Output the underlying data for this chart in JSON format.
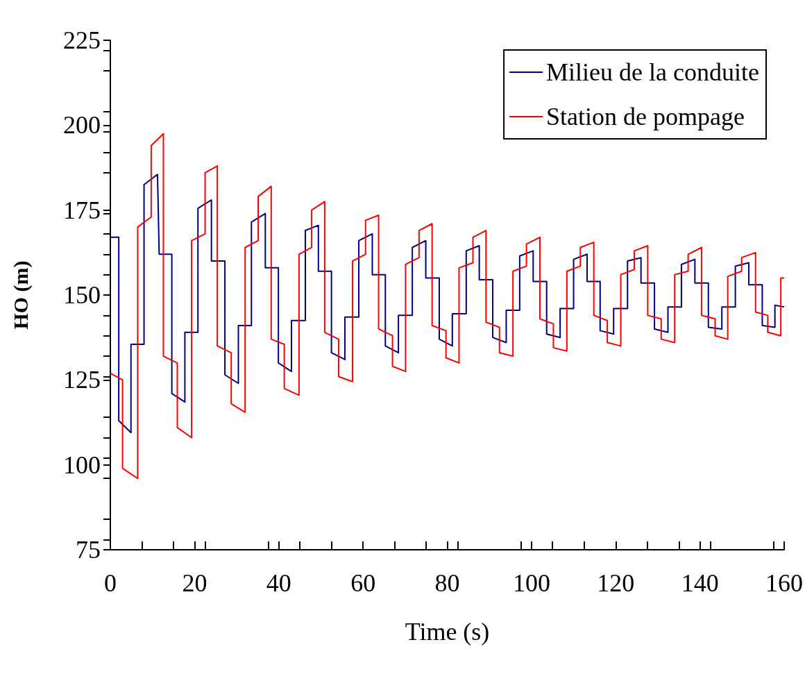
{
  "chart_data": {
    "type": "line",
    "xlabel": "Time (s)",
    "ylabel": "HO (m)",
    "xlim": [
      0,
      160
    ],
    "xticks": [
      0,
      20,
      40,
      60,
      80,
      100,
      120,
      140,
      160
    ],
    "ylim": [
      75,
      225
    ],
    "yticks": [
      75,
      100,
      125,
      150,
      175,
      200,
      225
    ],
    "grid": false,
    "legend": "top right",
    "series": [
      {
        "name": "Milieu de la conduite",
        "color": "#000080",
        "x": [
          0,
          2.0,
          2.0,
          4.9,
          4.9,
          8.0,
          8.0,
          11.2,
          11.6,
          14.6,
          14.6,
          17.7,
          17.7,
          20.8,
          20.8,
          24.0,
          24.0,
          27.2,
          27.2,
          30.4,
          30.4,
          33.5,
          33.5,
          36.8,
          36.8,
          39.9,
          39.9,
          43.0,
          43.0,
          46.3,
          46.3,
          49.4,
          49.4,
          52.5,
          52.5,
          55.7,
          55.7,
          59.0,
          59.0,
          62.2,
          62.2,
          65.3,
          65.3,
          68.4,
          68.4,
          71.7,
          71.7,
          74.9,
          74.9,
          78.1,
          78.1,
          81.2,
          81.2,
          84.5,
          84.5,
          87.6,
          87.6,
          90.8,
          90.8,
          94.0,
          94.0,
          97.2,
          97.2,
          100.4,
          100.4,
          103.6,
          103.6,
          106.8,
          106.8,
          110.0,
          110.0,
          113.2,
          113.2,
          116.3,
          116.3,
          119.5,
          119.5,
          122.8,
          122.8,
          126.0,
          126.0,
          129.2,
          129.2,
          132.4,
          132.4,
          135.6,
          135.6,
          138.8,
          138.8,
          142.0,
          142.0,
          145.2,
          145.2,
          148.4,
          148.4,
          151.6,
          151.6,
          154.8,
          154.8,
          157.8,
          157.8,
          160
        ],
        "values": [
          167,
          167,
          113,
          109.5,
          135.5,
          135.5,
          182.5,
          185.5,
          162,
          162,
          121,
          118.5,
          139,
          139,
          175.5,
          178,
          160,
          160,
          126.5,
          124,
          141,
          141,
          171.5,
          174,
          158,
          158,
          130,
          127.5,
          142.5,
          142.5,
          169,
          170.5,
          157,
          157,
          133,
          131,
          143.5,
          143.5,
          166,
          168,
          156,
          156,
          135,
          133,
          144,
          144,
          164,
          166,
          155,
          155,
          137,
          135,
          144.5,
          144.5,
          163,
          164.5,
          154.5,
          154.5,
          137.5,
          136,
          145.5,
          145.5,
          161.5,
          163,
          154,
          154,
          138.5,
          137.5,
          146,
          146,
          160.5,
          162,
          154,
          154,
          139.5,
          138.5,
          146,
          146,
          160,
          161,
          153.5,
          153.5,
          140,
          139,
          146.5,
          146.5,
          159,
          160.5,
          153.5,
          153.5,
          140.5,
          140,
          146.5,
          146.5,
          158.5,
          159.5,
          153,
          153,
          141,
          140.5,
          147,
          146.5
        ]
      },
      {
        "name": "Station de pompage",
        "color": "#ff0000",
        "x": [
          0,
          2.9,
          2.9,
          6.5,
          6.5,
          9.7,
          9.7,
          12.6,
          12.6,
          15.9,
          15.9,
          19.3,
          19.3,
          22.5,
          22.5,
          25.4,
          25.4,
          28.7,
          28.7,
          32.0,
          32.0,
          35.1,
          35.1,
          38.2,
          38.2,
          41.3,
          41.3,
          44.8,
          44.8,
          47.8,
          47.8,
          50.9,
          50.9,
          54.2,
          54.2,
          57.5,
          57.5,
          60.6,
          60.6,
          63.7,
          63.7,
          67.0,
          67.0,
          70.1,
          70.1,
          73.3,
          73.3,
          76.4,
          76.4,
          79.7,
          79.7,
          82.8,
          82.8,
          86.1,
          86.1,
          89.2,
          89.2,
          92.4,
          92.4,
          95.6,
          95.6,
          98.8,
          98.8,
          102.0,
          102.0,
          105.2,
          105.2,
          108.4,
          108.4,
          111.6,
          111.6,
          114.8,
          114.8,
          118.0,
          118.0,
          121.2,
          121.2,
          124.4,
          124.4,
          127.6,
          127.6,
          130.8,
          130.8,
          134.0,
          134.0,
          137.2,
          137.2,
          140.4,
          140.4,
          143.6,
          143.6,
          146.6,
          146.6,
          149.9,
          149.9,
          153.2,
          153.2,
          156.1,
          156.1,
          159.2,
          159.2,
          160
        ],
        "values": [
          127,
          125,
          99,
          96,
          170,
          173,
          194,
          197.5,
          132,
          130,
          111,
          108,
          166,
          168,
          186,
          188,
          135,
          133,
          118,
          115.5,
          164,
          166,
          179,
          182,
          137,
          135.5,
          122.5,
          120.5,
          162,
          164,
          175,
          177.5,
          139,
          137,
          126,
          124.5,
          160,
          162,
          172,
          173.5,
          140,
          138,
          129,
          127.5,
          159,
          161,
          169,
          171,
          141,
          139.5,
          131.5,
          130,
          158,
          159.5,
          167,
          169,
          142,
          140.5,
          133,
          132,
          157,
          158.5,
          165,
          167,
          143,
          141.5,
          134.5,
          133.5,
          157,
          158.5,
          164,
          165.5,
          144,
          142.5,
          136,
          135,
          156,
          157.5,
          163,
          164.5,
          144,
          143,
          137,
          136,
          156,
          157,
          162,
          164,
          144,
          143,
          138,
          137,
          155.5,
          157,
          161,
          162.5,
          145,
          144,
          139,
          138,
          155,
          155
        ]
      }
    ]
  }
}
